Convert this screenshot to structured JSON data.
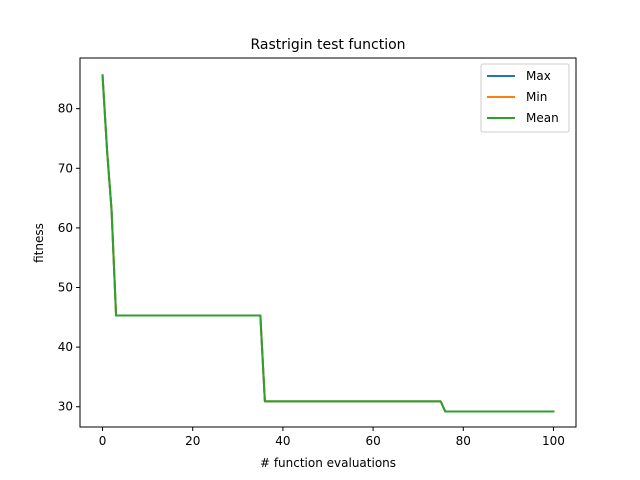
{
  "chart_data": {
    "type": "line",
    "title": "Rastrigin test function",
    "xlabel": "# function evaluations",
    "ylabel": "fitness",
    "xlim": [
      -5,
      105
    ],
    "ylim": [
      26.6,
      88.5
    ],
    "xticks": [
      0,
      20,
      40,
      60,
      80,
      100
    ],
    "yticks": [
      30,
      40,
      50,
      60,
      70,
      80
    ],
    "grid": false,
    "legend_position": "top-right",
    "series": [
      {
        "name": "Max",
        "color": "#1f77b4",
        "x": [
          0,
          1,
          2,
          3,
          35,
          36,
          75,
          76,
          100
        ],
        "y": [
          85.6,
          73.0,
          63.0,
          45.3,
          45.3,
          30.9,
          30.9,
          29.2,
          29.2
        ]
      },
      {
        "name": "Min",
        "color": "#ff7f0e",
        "x": [
          0,
          1,
          2,
          3,
          35,
          36,
          75,
          76,
          100
        ],
        "y": [
          85.6,
          73.0,
          63.0,
          45.3,
          45.3,
          30.9,
          30.9,
          29.2,
          29.2
        ]
      },
      {
        "name": "Mean",
        "color": "#2ca02c",
        "x": [
          0,
          1,
          2,
          3,
          35,
          36,
          75,
          76,
          100
        ],
        "y": [
          85.6,
          73.0,
          63.0,
          45.3,
          45.3,
          30.9,
          30.9,
          29.2,
          29.2
        ]
      }
    ]
  }
}
